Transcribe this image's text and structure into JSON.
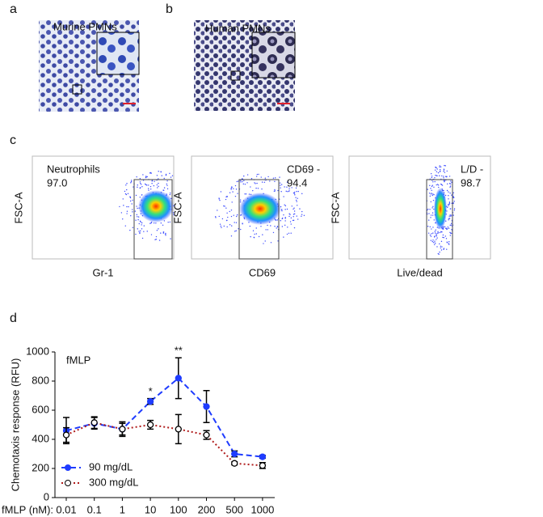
{
  "panels": {
    "a": {
      "label": "a",
      "title": "Murine PMNs"
    },
    "b": {
      "label": "b",
      "title": "Human PMNs"
    },
    "c": {
      "label": "c",
      "plots": [
        {
          "y_label": "FSC-A",
          "x_label": "Gr-1",
          "gate_name": "Neutrophils",
          "gate_value": "97.0"
        },
        {
          "y_label": "FSC-A",
          "x_label": "CD69",
          "gate_name": "CD69 -",
          "gate_value": "94.4"
        },
        {
          "y_label": "FSC-A",
          "x_label": "Live/dead",
          "gate_name": "L/D -",
          "gate_value": "98.7"
        }
      ]
    },
    "d": {
      "label": "d"
    }
  },
  "chart_data": {
    "type": "line",
    "annotation": "fMLP",
    "x_label": "fMLP (nM):",
    "y_label": "Chemotaxis response (RFU)",
    "categories": [
      "0.01",
      "0.1",
      "1",
      "10",
      "100",
      "200",
      "500",
      "1000"
    ],
    "ylim": [
      0,
      1000
    ],
    "yticks": [
      0,
      200,
      400,
      600,
      800,
      1000
    ],
    "significance": [
      null,
      null,
      null,
      "*",
      "**",
      null,
      null,
      null
    ],
    "legend": "bottom-left",
    "series": [
      {
        "name": "90 mg/dL",
        "color": "#1f3cff",
        "line_style": "dashed",
        "marker": "filled",
        "values": [
          460,
          510,
          470,
          660,
          820,
          625,
          300,
          280
        ],
        "errors": [
          90,
          40,
          50,
          20,
          140,
          110,
          20,
          10
        ]
      },
      {
        "name": "300 mg/dL",
        "color": "#b01c1c",
        "line_style": "dotted",
        "marker": "open",
        "values": [
          430,
          515,
          470,
          500,
          470,
          430,
          235,
          220
        ],
        "errors": [
          50,
          40,
          40,
          30,
          100,
          30,
          10,
          20
        ]
      }
    ]
  }
}
